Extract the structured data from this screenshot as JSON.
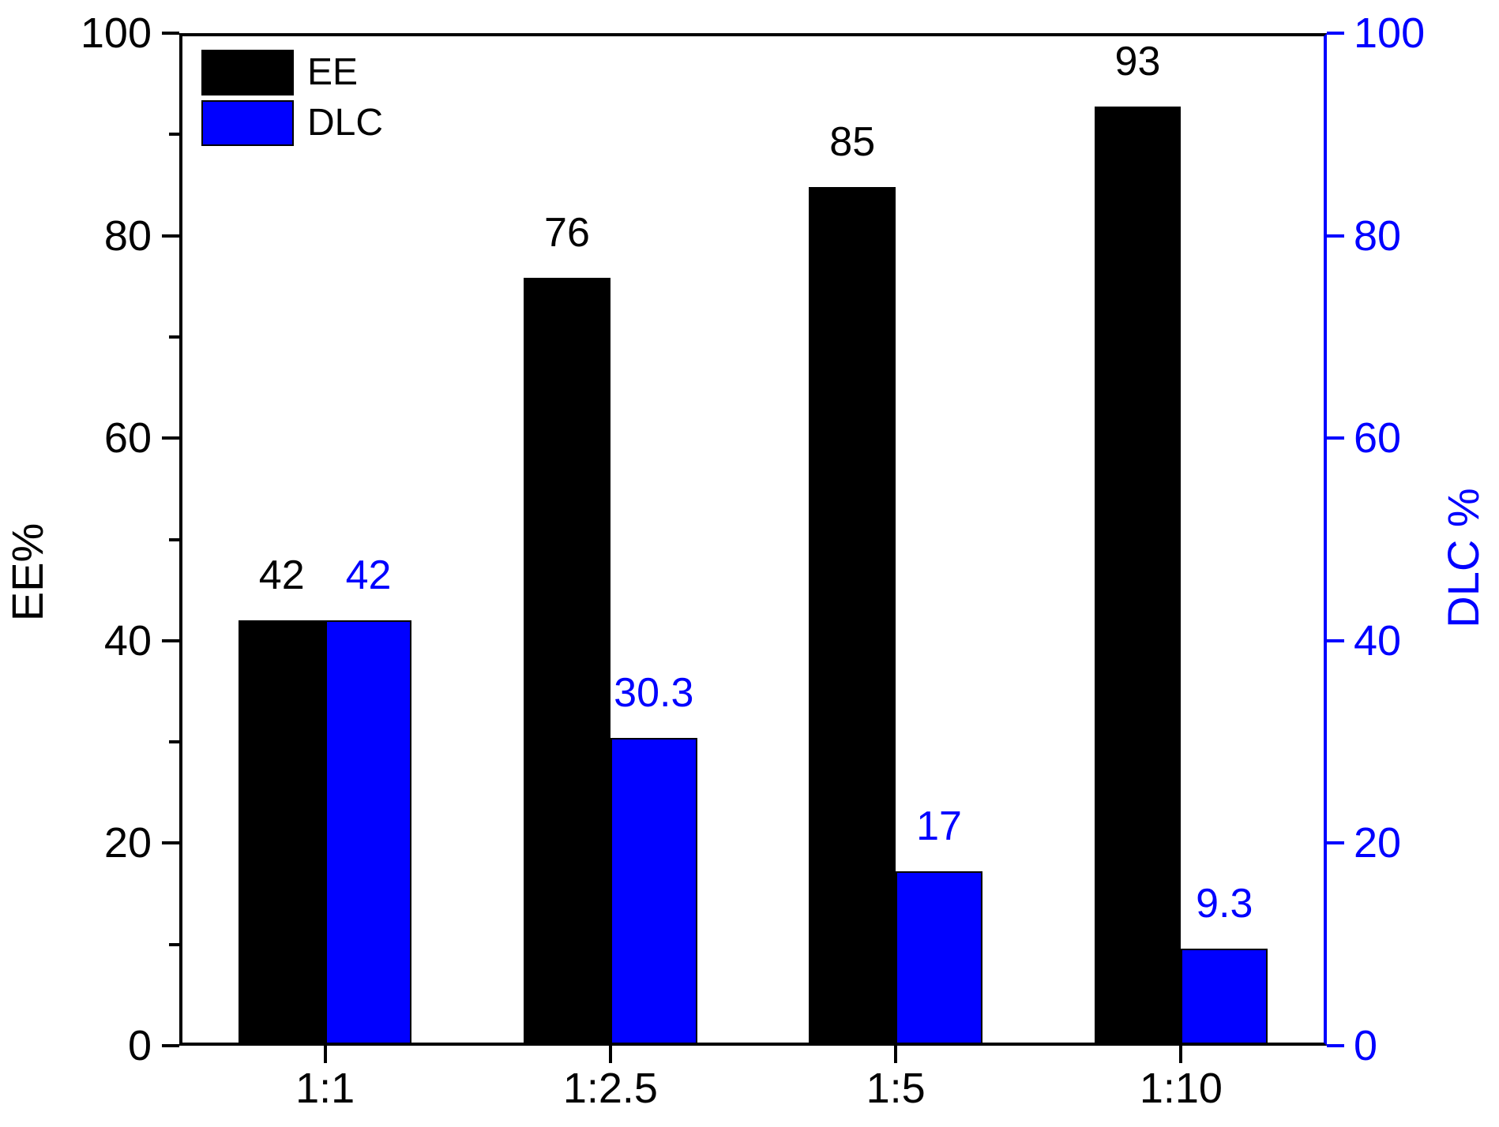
{
  "chart_data": {
    "type": "bar",
    "categories": [
      "1:1",
      "1:2.5",
      "1:5",
      "1:10"
    ],
    "series": [
      {
        "name": "EE",
        "axis": "left",
        "color": "#000000",
        "values": [
          42,
          76,
          85,
          93
        ],
        "labels": [
          "42",
          "76",
          "85",
          "93"
        ]
      },
      {
        "name": "DLC",
        "axis": "right",
        "color": "#0000ff",
        "values": [
          42,
          30.3,
          17,
          9.3
        ],
        "labels": [
          "42",
          "30.3",
          "17",
          "9.3"
        ]
      }
    ],
    "title": "",
    "xlabel": "",
    "ylabel_left": "EE%",
    "ylabel_right": "DLC %",
    "left_axis": {
      "range": [
        0,
        100
      ],
      "major_ticks": [
        0,
        20,
        40,
        60,
        80,
        100
      ],
      "minor_ticks": [
        10,
        30,
        50,
        70,
        90
      ],
      "color": "#000000"
    },
    "right_axis": {
      "range": [
        0,
        100
      ],
      "major_ticks": [
        0,
        20,
        40,
        60,
        80,
        100
      ],
      "minor_ticks": [],
      "color": "#0000ff"
    },
    "legend": {
      "position": "top-left",
      "entries": [
        "EE",
        "DLC"
      ]
    },
    "grid": false,
    "background": "#ffffff"
  }
}
